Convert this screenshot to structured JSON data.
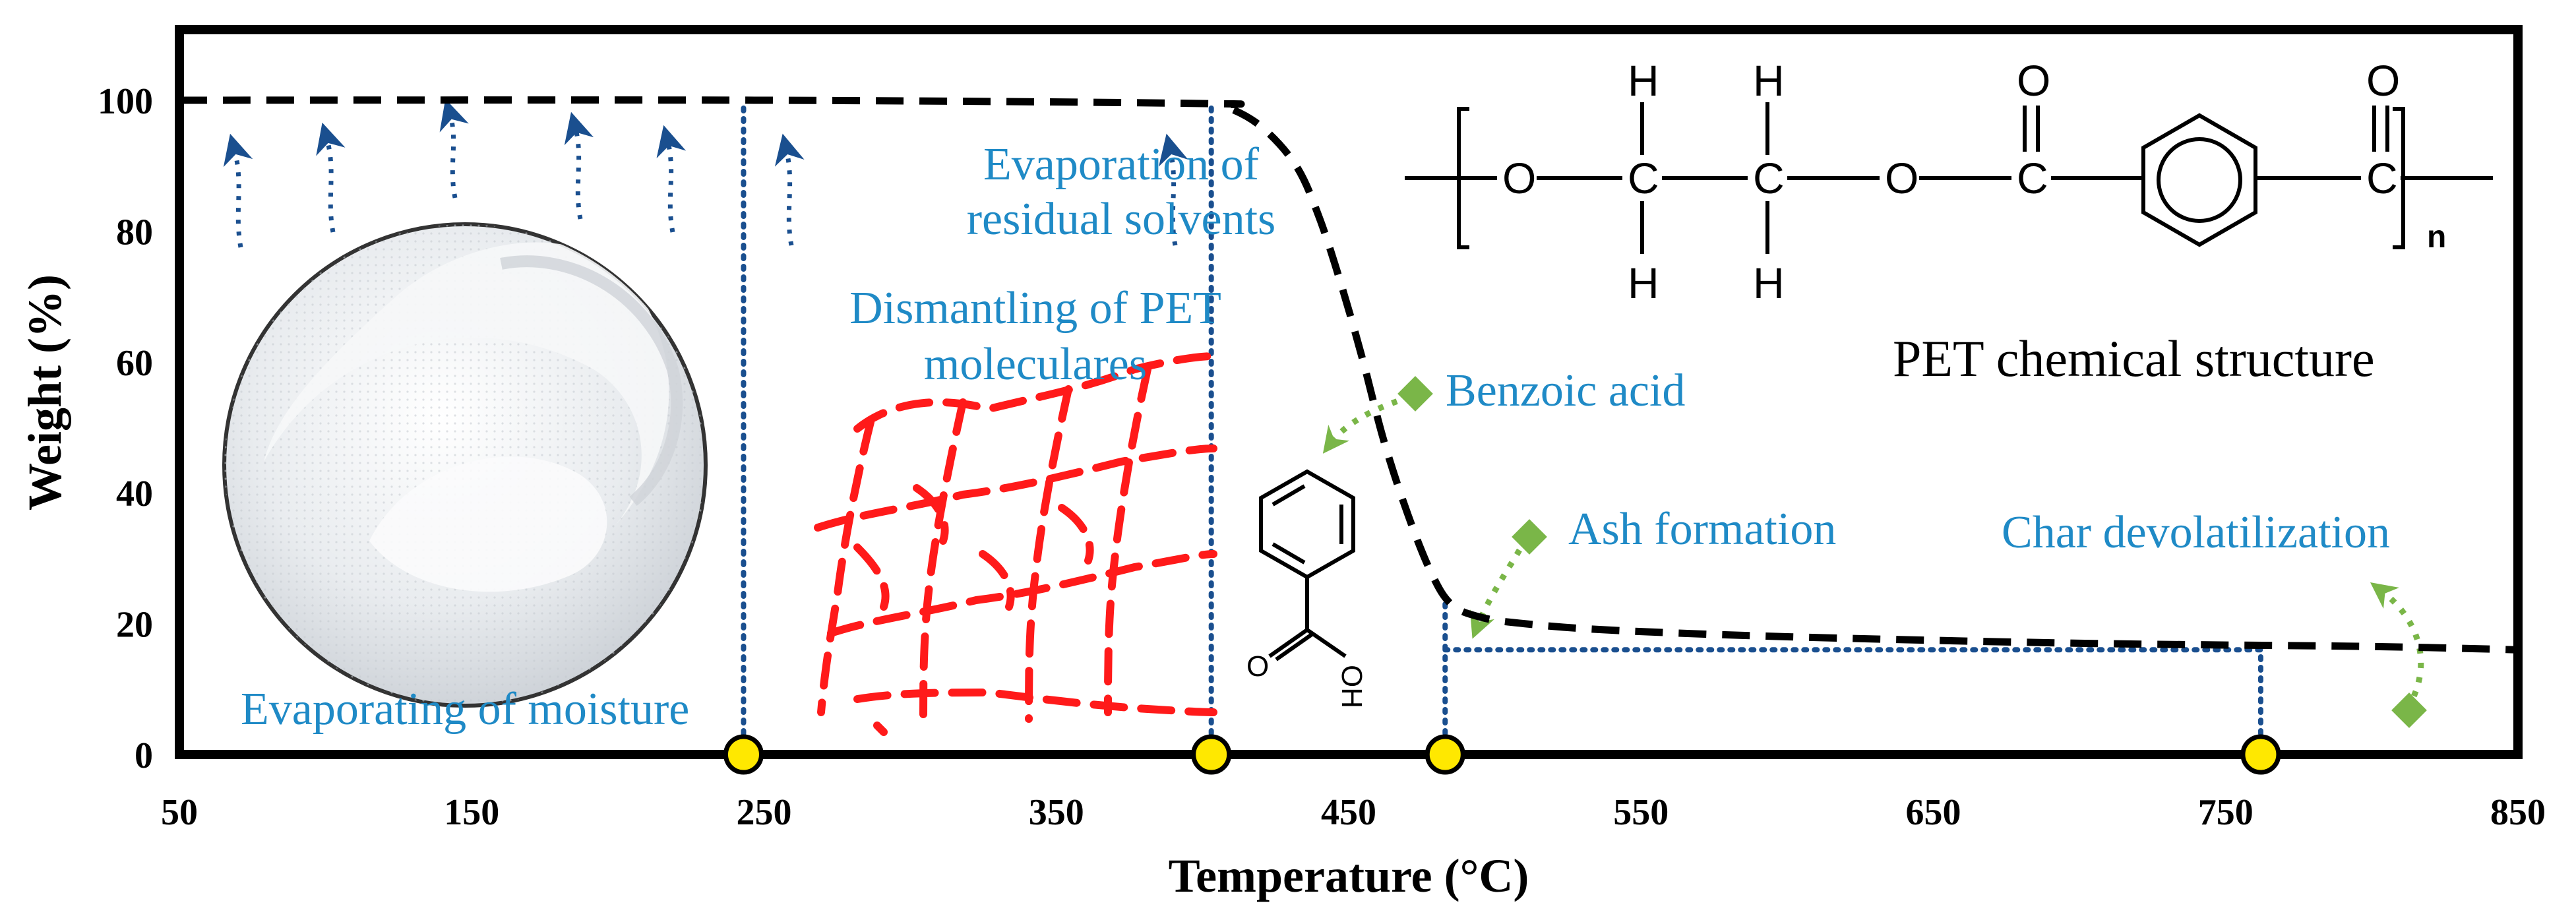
{
  "chart_data": {
    "type": "line",
    "xlabel": "Temperature (°C)",
    "ylabel": "Weight (%)",
    "xlim": [
      50,
      850
    ],
    "ylim": [
      0,
      100
    ],
    "x_ticks": [
      50,
      150,
      250,
      350,
      450,
      550,
      650,
      750,
      850
    ],
    "y_ticks": [
      0,
      20,
      40,
      60,
      80,
      100
    ],
    "grid": false,
    "series": [
      {
        "style": "dashed",
        "color": "#000000",
        "x": [
          50,
          250,
          400,
          408,
          420,
          432,
          440,
          448,
          455,
          462,
          470,
          478,
          485,
          495,
          510,
          540,
          600,
          700,
          800,
          850
        ],
        "y": [
          100,
          100,
          99.5,
          99,
          96,
          90,
          82,
          71,
          60,
          48,
          37,
          28,
          23,
          21,
          20,
          19,
          18,
          17,
          16.5,
          16
        ]
      }
    ],
    "markers": [
      {
        "x": 243,
        "y": 0
      },
      {
        "x": 403,
        "y": 0
      },
      {
        "x": 483,
        "y": 0
      },
      {
        "x": 762,
        "y": 0
      }
    ],
    "markers_color": "#ffe800",
    "region_lines_color": "#1a4f8f",
    "region_lines": [
      {
        "x": 243,
        "y_from": 0,
        "y_to": 100
      },
      {
        "x": 403,
        "y_from": 0,
        "y_to": 100
      },
      {
        "x": 483,
        "y_from": 0,
        "y_to": 23
      },
      {
        "x": 762,
        "y_from": 0,
        "y_to": 16
      },
      {
        "x_from": 483,
        "x_to": 762,
        "y": 16
      }
    ],
    "annotations": [
      "Evaporation of residual solvents",
      "Dismantling of PET moleculares",
      "Evaporating of moisture",
      "Benzoic acid",
      "Ash formation",
      "Char devolatilization",
      "PET chemical structure"
    ]
  },
  "labels": {
    "evap_solvents_line1": "Evaporation of",
    "evap_solvents_line2": "residual solvents",
    "dismantling_line1": "Dismantling of PET",
    "dismantling_line2": "moleculares",
    "moisture": "Evaporating of moisture",
    "benzoic": "Benzoic acid",
    "ash": "Ash formation",
    "char": "Char devolatilization",
    "pet_structure": "PET chemical structure"
  },
  "chem": {
    "o": "O",
    "c": "C",
    "h": "H",
    "oh": "OH",
    "n": "n"
  },
  "colors": {
    "blue_text": "#1f8ac6",
    "arrow_blue": "#1a4f8f",
    "green_arrow": "#7ab648",
    "red_fibers": "#ff1a1a"
  }
}
